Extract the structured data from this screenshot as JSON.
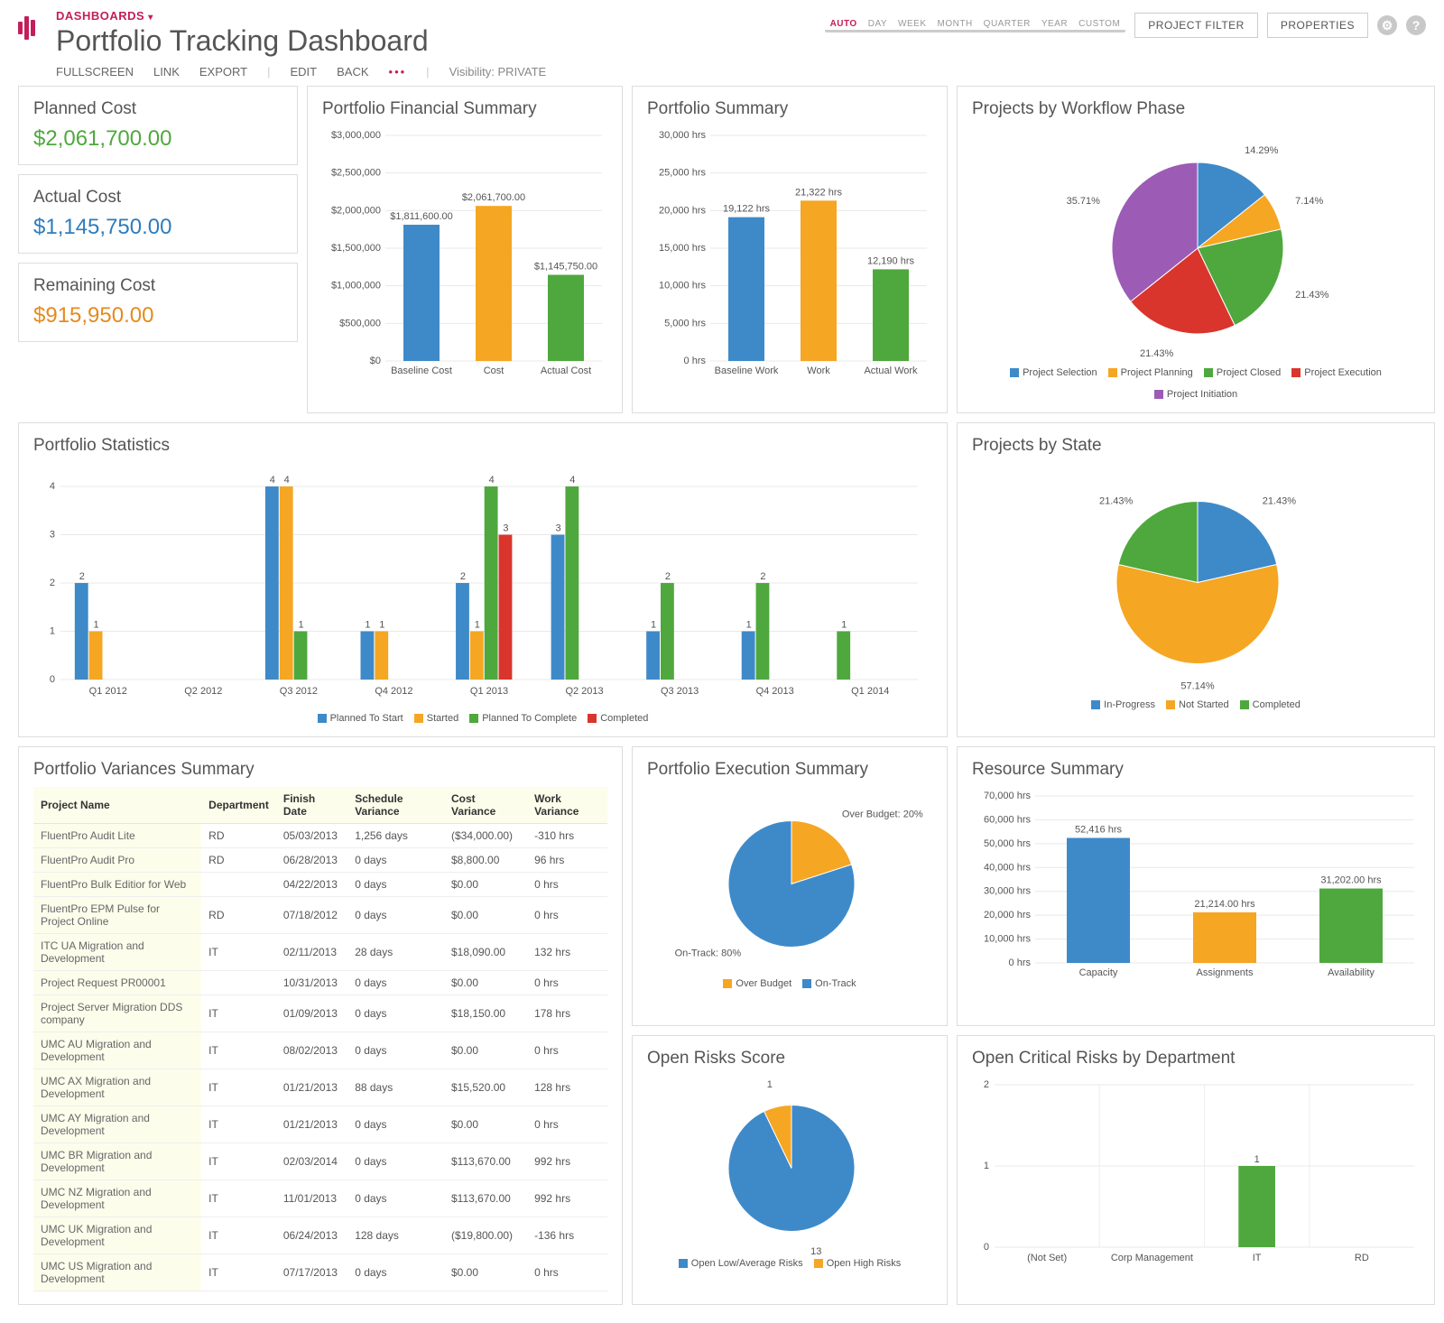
{
  "colors": {
    "blue": "#3e8ac9",
    "orange": "#f5a623",
    "green": "#4fa83d",
    "red": "#d9352c",
    "purple": "#9c5cb5",
    "grid": "#e0e0e0",
    "text": "#555"
  },
  "header": {
    "crumb": "DASHBOARDS",
    "title": "Portfolio Tracking Dashboard",
    "toolbar": [
      "FULLSCREEN",
      "LINK",
      "EXPORT",
      "|",
      "EDIT",
      "BACK",
      "•••",
      "|"
    ],
    "visibility": "Visibility: PRIVATE",
    "time_tabs": [
      "AUTO",
      "DAY",
      "WEEK",
      "MONTH",
      "QUARTER",
      "YEAR",
      "CUSTOM"
    ],
    "time_active": "AUTO",
    "btn_filter": "PROJECT FILTER",
    "btn_props": "PROPERTIES"
  },
  "kpi": {
    "planned": {
      "label": "Planned Cost",
      "value": "$2,061,700.00"
    },
    "actual": {
      "label": "Actual Cost",
      "value": "$1,145,750.00"
    },
    "remaining": {
      "label": "Remaining Cost",
      "value": "$915,950.00"
    }
  },
  "fin_summary": {
    "title": "Portfolio Financial Summary",
    "ylabel": "$",
    "ymax": 3000000,
    "ystep": 500000,
    "yticks": [
      "$0",
      "$500,000",
      "$1,000,000",
      "$1,500,000",
      "$2,000,000",
      "$2,500,000",
      "$3,000,000"
    ],
    "bars": [
      {
        "label": "Baseline Cost",
        "val": 1811600,
        "txt": "$1,811,600.00",
        "color": "#3e8ac9"
      },
      {
        "label": "Cost",
        "val": 2061700,
        "txt": "$2,061,700.00",
        "color": "#f5a623"
      },
      {
        "label": "Actual Cost",
        "val": 1145750,
        "txt": "$1,145,750.00",
        "color": "#4fa83d"
      }
    ]
  },
  "port_summary": {
    "title": "Portfolio Summary",
    "ymax": 30000,
    "ystep": 5000,
    "yticks": [
      "0 hrs",
      "5,000 hrs",
      "10,000 hrs",
      "15,000 hrs",
      "20,000 hrs",
      "25,000 hrs",
      "30,000 hrs"
    ],
    "bars": [
      {
        "label": "Baseline Work",
        "val": 19122,
        "txt": "19,122 hrs",
        "color": "#3e8ac9"
      },
      {
        "label": "Work",
        "val": 21322,
        "txt": "21,322 hrs",
        "color": "#f5a623"
      },
      {
        "label": "Actual Work",
        "val": 12190,
        "txt": "12,190 hrs",
        "color": "#4fa83d"
      }
    ]
  },
  "workflow": {
    "title": "Projects by Workflow Phase",
    "slices": [
      {
        "label": "Project Selection",
        "pct": 14.29,
        "color": "#3e8ac9"
      },
      {
        "label": "Project Planning",
        "pct": 7.14,
        "color": "#f5a623"
      },
      {
        "label": "Project Closed",
        "pct": 21.43,
        "color": "#4fa83d"
      },
      {
        "label": "Project Execution",
        "pct": 21.43,
        "color": "#d9352c"
      },
      {
        "label": "Project Initiation",
        "pct": 35.71,
        "color": "#9c5cb5"
      }
    ]
  },
  "stats": {
    "title": "Portfolio Statistics",
    "ymax": 4.3,
    "periods": [
      "Q1 2012",
      "Q2 2012",
      "Q3 2012",
      "Q4 2012",
      "Q1 2013",
      "Q2 2013",
      "Q3 2013",
      "Q4 2013",
      "Q1 2014"
    ],
    "series": [
      {
        "name": "Planned To Start",
        "color": "#3e8ac9",
        "vals": [
          2,
          0,
          4,
          1,
          2,
          3,
          1,
          1,
          0
        ]
      },
      {
        "name": "Started",
        "color": "#f5a623",
        "vals": [
          1,
          0,
          4,
          1,
          1,
          0,
          0,
          0,
          0
        ]
      },
      {
        "name": "Planned To Complete",
        "color": "#4fa83d",
        "vals": [
          0,
          0,
          1,
          0,
          4,
          4,
          2,
          2,
          1
        ]
      },
      {
        "name": "Completed",
        "color": "#d9352c",
        "vals": [
          0,
          0,
          0,
          0,
          3,
          0,
          0,
          0,
          0
        ]
      }
    ]
  },
  "state": {
    "title": "Projects by State",
    "slices": [
      {
        "label": "In-Progress",
        "pct": 21.43,
        "color": "#3e8ac9"
      },
      {
        "label": "Not Started",
        "pct": 57.14,
        "color": "#f5a623"
      },
      {
        "label": "Completed",
        "pct": 21.43,
        "color": "#4fa83d"
      }
    ]
  },
  "variances": {
    "title": "Portfolio Variances Summary",
    "columns": [
      "Project Name",
      "Department",
      "Finish Date",
      "Schedule Variance",
      "Cost Variance",
      "Work Variance"
    ],
    "rows": [
      [
        "FluentPro Audit Lite",
        "RD",
        "05/03/2013",
        "1,256 days",
        "($34,000.00)",
        "-310 hrs"
      ],
      [
        "FluentPro Audit Pro",
        "RD",
        "06/28/2013",
        "0 days",
        "$8,800.00",
        "96 hrs"
      ],
      [
        "FluentPro Bulk Editior for Web",
        "",
        "04/22/2013",
        "0 days",
        "$0.00",
        "0 hrs"
      ],
      [
        "FluentPro EPM Pulse for Project Online",
        "RD",
        "07/18/2012",
        "0 days",
        "$0.00",
        "0 hrs"
      ],
      [
        "ITC UA Migration and Development",
        "IT",
        "02/11/2013",
        "28 days",
        "$18,090.00",
        "132 hrs"
      ],
      [
        "Project Request PR00001",
        "",
        "10/31/2013",
        "0 days",
        "$0.00",
        "0 hrs"
      ],
      [
        "Project Server Migration DDS company",
        "IT",
        "01/09/2013",
        "0 days",
        "$18,150.00",
        "178 hrs"
      ],
      [
        "UMC AU Migration and Development",
        "IT",
        "08/02/2013",
        "0 days",
        "$0.00",
        "0 hrs"
      ],
      [
        "UMC AX Migration and Development",
        "IT",
        "01/21/2013",
        "88 days",
        "$15,520.00",
        "128 hrs"
      ],
      [
        "UMC AY Migration and Development",
        "IT",
        "01/21/2013",
        "0 days",
        "$0.00",
        "0 hrs"
      ],
      [
        "UMC BR Migration and Development",
        "IT",
        "02/03/2014",
        "0 days",
        "$113,670.00",
        "992 hrs"
      ],
      [
        "UMC NZ Migration and Development",
        "IT",
        "11/01/2013",
        "0 days",
        "$113,670.00",
        "992 hrs"
      ],
      [
        "UMC UK Migration and Development",
        "IT",
        "06/24/2013",
        "128 days",
        "($19,800.00)",
        "-136 hrs"
      ],
      [
        "UMC US Migration and Development",
        "IT",
        "07/17/2013",
        "0 days",
        "$0.00",
        "0 hrs"
      ]
    ]
  },
  "exec": {
    "title": "Portfolio Execution Summary",
    "slices": [
      {
        "label": "Over Budget",
        "pct": 20,
        "txt": "Over Budget: 20%",
        "color": "#f5a623"
      },
      {
        "label": "On-Track",
        "pct": 80,
        "txt": "On-Track: 80%",
        "color": "#3e8ac9"
      }
    ]
  },
  "risks": {
    "title": "Open Risks Score",
    "slices": [
      {
        "label": "Open Low/Average Risks",
        "val": 13,
        "color": "#3e8ac9"
      },
      {
        "label": "Open High Risks",
        "val": 1,
        "color": "#f5a623"
      }
    ]
  },
  "resource": {
    "title": "Resource Summary",
    "ymax": 70000,
    "ystep": 10000,
    "yticks": [
      "0 hrs",
      "10,000 hrs",
      "20,000 hrs",
      "30,000 hrs",
      "40,000 hrs",
      "50,000 hrs",
      "60,000 hrs",
      "70,000 hrs"
    ],
    "bars": [
      {
        "label": "Capacity",
        "val": 52416,
        "txt": "52,416 hrs",
        "color": "#3e8ac9"
      },
      {
        "label": "Assignments",
        "val": 21214,
        "txt": "21,214.00 hrs",
        "color": "#f5a623"
      },
      {
        "label": "Availability",
        "val": 31202,
        "txt": "31,202.00 hrs",
        "color": "#4fa83d"
      }
    ]
  },
  "crit_risks": {
    "title": "Open Critical Risks by Department",
    "ymax": 2,
    "cats": [
      "(Not Set)",
      "Corp Management",
      "IT",
      "RD"
    ],
    "vals": [
      0,
      0,
      1,
      0
    ],
    "color": "#4fa83d"
  }
}
